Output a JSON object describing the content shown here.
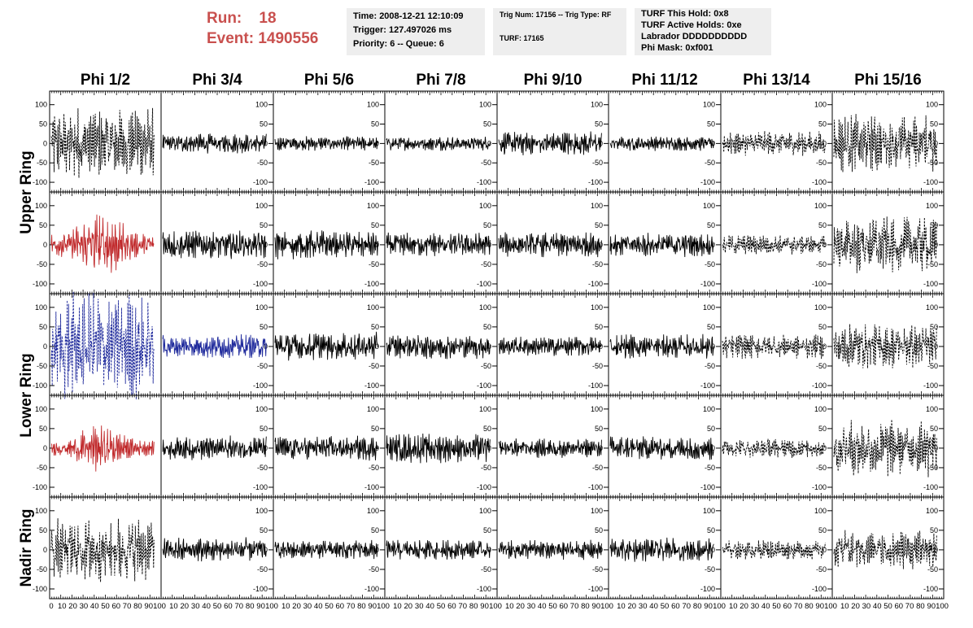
{
  "header": {
    "run_label": "Run:",
    "run_value": "18",
    "event_label": "Event:",
    "event_value": "1490556"
  },
  "info_box_1": {
    "time": "Time: 2008-12-21 12:10:09",
    "trigger": "Trigger: 127.497026 ms",
    "priority": "Priority: 6 -- Queue: 6"
  },
  "info_box_2": {
    "trig": "Trig Num: 17156 -- Trig Type: RF",
    "turf": "TURF: 17165"
  },
  "info_box_3": {
    "hold": "TURF This Hold: 0x8",
    "active": "TURF Active Holds: 0xe",
    "labrador": "Labrador DDDDDDDDDD",
    "mask": "Phi Mask: 0xf001"
  },
  "chart_data": {
    "type": "line",
    "columns": [
      "Phi 1/2",
      "Phi 3/4",
      "Phi 5/6",
      "Phi 7/8",
      "Phi 9/10",
      "Phi 11/12",
      "Phi 13/14",
      "Phi 15/16"
    ],
    "row_labels": [
      {
        "name": "Upper Ring",
        "rows": [
          0,
          1
        ]
      },
      {
        "name": "Lower Ring",
        "rows": [
          2,
          3
        ]
      },
      {
        "name": "Nadir Ring",
        "rows": [
          4
        ]
      }
    ],
    "y_ticks": [
      100,
      50,
      0,
      -50,
      -100
    ],
    "ylim": [
      -125,
      135
    ],
    "x_ticks": [
      0,
      10,
      20,
      30,
      40,
      50,
      60,
      70,
      80,
      90,
      100
    ],
    "xlim": [
      0,
      100
    ],
    "waveform_amplitude": [
      [
        75,
        20,
        15,
        15,
        25,
        15,
        25,
        60
      ],
      [
        75,
        30,
        30,
        25,
        25,
        25,
        20,
        60
      ],
      [
        110,
        25,
        30,
        25,
        20,
        25,
        25,
        45
      ],
      [
        50,
        25,
        25,
        30,
        20,
        25,
        20,
        60
      ],
      [
        65,
        25,
        20,
        20,
        20,
        25,
        20,
        40
      ]
    ],
    "waveform_style": [
      [
        "dashed",
        "solid",
        "solid",
        "solid",
        "solid",
        "solid",
        "dashed",
        "dashed"
      ],
      [
        "solid",
        "solid",
        "solid",
        "solid",
        "solid",
        "solid",
        "dashed",
        "dashed"
      ],
      [
        "dashed",
        "solid",
        "solid",
        "solid",
        "solid",
        "solid",
        "dashed",
        "dashed"
      ],
      [
        "solid",
        "solid",
        "solid",
        "solid",
        "solid",
        "solid",
        "dashed",
        "dashed"
      ],
      [
        "dashed",
        "solid",
        "solid",
        "solid",
        "solid",
        "solid",
        "dashed",
        "dashed"
      ]
    ],
    "waveform_color": [
      [
        "#000000",
        "#000000",
        "#000000",
        "#000000",
        "#000000",
        "#000000",
        "#000000",
        "#000000"
      ],
      [
        "#c0292b",
        "#000000",
        "#000000",
        "#000000",
        "#000000",
        "#000000",
        "#000000",
        "#000000"
      ],
      [
        "#1f2a9c",
        "#1f2a9c",
        "#000000",
        "#000000",
        "#000000",
        "#000000",
        "#000000",
        "#000000"
      ],
      [
        "#c0292b",
        "#000000",
        "#000000",
        "#000000",
        "#000000",
        "#000000",
        "#000000",
        "#000000"
      ],
      [
        "#000000",
        "#000000",
        "#000000",
        "#000000",
        "#000000",
        "#000000",
        "#000000",
        "#000000"
      ]
    ],
    "title_color": "#c9504e",
    "grid": false
  }
}
